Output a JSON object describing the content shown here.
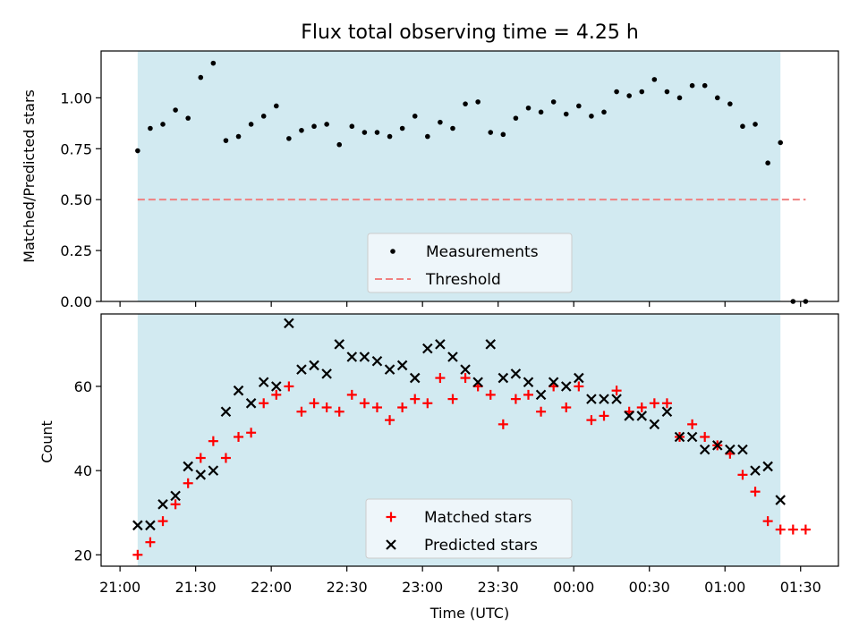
{
  "chart_data": {
    "type": "scatter",
    "title": "Flux total observing time = 4.25 h",
    "xlabel": "Time (UTC)",
    "x_ticks": [
      {
        "value": 0,
        "label": "21:00"
      },
      {
        "value": 30,
        "label": "21:30"
      },
      {
        "value": 60,
        "label": "22:00"
      },
      {
        "value": 90,
        "label": "22:30"
      },
      {
        "value": 120,
        "label": "23:00"
      },
      {
        "value": 150,
        "label": "23:30"
      },
      {
        "value": 180,
        "label": "00:00"
      },
      {
        "value": 210,
        "label": "00:30"
      },
      {
        "value": 240,
        "label": "01:00"
      },
      {
        "value": 270,
        "label": "01:30"
      }
    ],
    "xlim": [
      -7.5,
      285
    ],
    "observing_window": [
      7,
      262
    ],
    "colors": {
      "window": "#add8e6",
      "measurement": "#000000",
      "threshold": "#f08080",
      "matched": "#ff0000",
      "predicted": "#000000",
      "legend_bg": "#f3f8fb"
    },
    "panels": [
      {
        "ylabel": "Matched/Predicted stars",
        "ylim": [
          0,
          1.23
        ],
        "y_ticks": [
          {
            "value": 0,
            "label": "0.00"
          },
          {
            "value": 0.25,
            "label": "0.25"
          },
          {
            "value": 0.5,
            "label": "0.50"
          },
          {
            "value": 0.75,
            "label": "0.75"
          },
          {
            "value": 1.0,
            "label": "1.00"
          }
        ],
        "legend_position": "lower-center",
        "legend": [
          {
            "label": "Measurements",
            "marker": "dot",
            "color": "#000000"
          },
          {
            "label": "Threshold",
            "marker": "dashed-line",
            "color": "#f08080"
          }
        ],
        "threshold": {
          "name": "Threshold",
          "value": 0.5,
          "x_range": [
            7,
            272
          ]
        },
        "series": [
          {
            "name": "Measurements",
            "marker": "dot",
            "x": [
              7,
              12,
              17,
              22,
              27,
              32,
              37,
              42,
              47,
              52,
              57,
              62,
              67,
              72,
              77,
              82,
              87,
              92,
              97,
              102,
              107,
              112,
              117,
              122,
              127,
              132,
              137,
              142,
              147,
              152,
              157,
              162,
              167,
              172,
              177,
              182,
              187,
              192,
              197,
              202,
              207,
              212,
              217,
              222,
              227,
              232,
              237,
              242,
              247,
              252,
              257,
              262,
              267,
              272
            ],
            "y": [
              0.74,
              0.85,
              0.87,
              0.94,
              0.9,
              1.1,
              1.17,
              0.79,
              0.81,
              0.87,
              0.91,
              0.96,
              0.8,
              0.84,
              0.86,
              0.87,
              0.77,
              0.86,
              0.83,
              0.83,
              0.81,
              0.85,
              0.91,
              0.81,
              0.88,
              0.85,
              0.97,
              0.98,
              0.83,
              0.82,
              0.9,
              0.95,
              0.93,
              0.98,
              0.92,
              0.96,
              0.91,
              0.93,
              1.03,
              1.01,
              1.03,
              1.09,
              1.03,
              1.0,
              1.06,
              1.06,
              1.0,
              0.97,
              0.86,
              0.87,
              0.68,
              0.78,
              0.0,
              0.0
            ]
          }
        ]
      },
      {
        "ylabel": "Count",
        "ylim": [
          17.3,
          77.2
        ],
        "y_ticks": [
          {
            "value": 20,
            "label": "20"
          },
          {
            "value": 40,
            "label": "40"
          },
          {
            "value": 60,
            "label": "60"
          }
        ],
        "legend_position": "lower-center",
        "legend": [
          {
            "label": "Matched stars",
            "marker": "plus",
            "color": "#ff0000"
          },
          {
            "label": "Predicted stars",
            "marker": "x",
            "color": "#000000"
          }
        ],
        "series": [
          {
            "name": "Matched stars",
            "marker": "plus",
            "x": [
              7,
              12,
              17,
              22,
              27,
              32,
              37,
              42,
              47,
              52,
              57,
              62,
              67,
              72,
              77,
              82,
              87,
              92,
              97,
              102,
              107,
              112,
              117,
              122,
              127,
              132,
              137,
              142,
              147,
              152,
              157,
              162,
              167,
              172,
              177,
              182,
              187,
              192,
              197,
              202,
              207,
              212,
              217,
              222,
              227,
              232,
              237,
              242,
              247,
              252,
              257,
              262,
              267,
              272
            ],
            "y": [
              20,
              23,
              28,
              32,
              37,
              43,
              47,
              43,
              48,
              49,
              56,
              58,
              60,
              54,
              56,
              55,
              54,
              58,
              56,
              55,
              52,
              55,
              57,
              56,
              62,
              57,
              62,
              60,
              58,
              51,
              57,
              58,
              54,
              60,
              55,
              60,
              52,
              53,
              59,
              54,
              55,
              56,
              56,
              48,
              51,
              48,
              46,
              44,
              39,
              35,
              28,
              26,
              26,
              26
            ]
          },
          {
            "name": "Predicted stars",
            "marker": "x",
            "x": [
              7,
              12,
              17,
              22,
              27,
              32,
              37,
              42,
              47,
              52,
              57,
              62,
              67,
              72,
              77,
              82,
              87,
              92,
              97,
              102,
              107,
              112,
              117,
              122,
              127,
              132,
              137,
              142,
              147,
              152,
              157,
              162,
              167,
              172,
              177,
              182,
              187,
              192,
              197,
              202,
              207,
              212,
              217,
              222,
              227,
              232,
              237,
              242,
              247,
              252,
              257,
              262
            ],
            "y": [
              27,
              27,
              32,
              34,
              41,
              39,
              40,
              54,
              59,
              56,
              61,
              60,
              75,
              64,
              65,
              63,
              70,
              67,
              67,
              66,
              64,
              65,
              62,
              69,
              70,
              67,
              64,
              61,
              70,
              62,
              63,
              61,
              58,
              61,
              60,
              62,
              57,
              57,
              57,
              53,
              53,
              51,
              54,
              48,
              48,
              45,
              46,
              45,
              45,
              40,
              41,
              33
            ]
          }
        ]
      }
    ]
  }
}
